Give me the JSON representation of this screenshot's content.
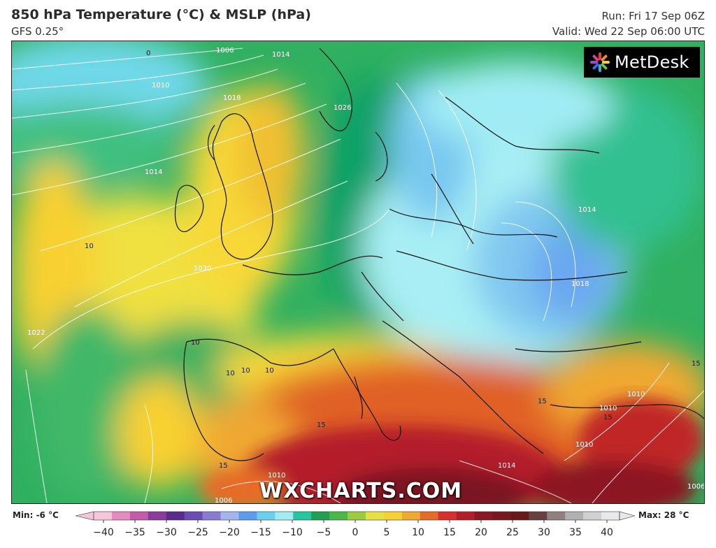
{
  "header": {
    "title": "850 hPa Temperature (°C) & MSLP (hPa)",
    "model": "GFS 0.25°",
    "run": "Run: Fri 17 Sep 06Z",
    "valid": "Valid: Wed 22 Sep 06:00 UTC"
  },
  "brand": {
    "logo_text": "MetDesk",
    "watermark": "WXCHARTS.COM"
  },
  "legend": {
    "min_label": "Min: -6 °C",
    "max_label": "Max: 28 °C",
    "ticks": [
      "−40",
      "−35",
      "−30",
      "−25",
      "−20",
      "−15",
      "−10",
      "−5",
      "0",
      "5",
      "10",
      "15",
      "20",
      "25",
      "30",
      "35",
      "40"
    ],
    "colors": [
      "#f4c6d8",
      "#e48cc0",
      "#c45aa8",
      "#8c3a9c",
      "#5a2a8c",
      "#6a4cb4",
      "#8a7ad4",
      "#a4b4ec",
      "#5c9cf0",
      "#6ad0f0",
      "#a0ecf4",
      "#24c8a0",
      "#20a050",
      "#48b848",
      "#9ccc3c",
      "#e8e040",
      "#f8d030",
      "#f0a830",
      "#e86a28",
      "#d8302c",
      "#b41e2a",
      "#8c1824",
      "#781820",
      "#6a1818",
      "#684040",
      "#908080",
      "#b0b0b0",
      "#d0d0d0",
      "#e8e8e8"
    ]
  },
  "map": {
    "pressure_labels": [
      "1006",
      "1014",
      "1010",
      "1026",
      "1018",
      "1030",
      "1022",
      "1014",
      "1018",
      "1010",
      "1010",
      "1014",
      "1006",
      "1010",
      "1010",
      "1006",
      "1014"
    ],
    "temp_labels": [
      "10",
      "10",
      "10",
      "10",
      "10",
      "15",
      "15",
      "15",
      "15",
      "15",
      "0"
    ]
  }
}
